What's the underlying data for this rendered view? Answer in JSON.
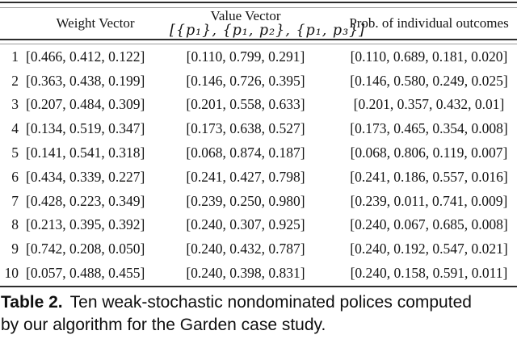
{
  "table": {
    "col_headers": {
      "weight": "Weight Vector",
      "value_line1": "Value Vector",
      "value_line2": "[{p₁}, {p₁, p₂}, {p₁, p₃}]",
      "prob": "Prob. of individual outcomes"
    },
    "rows": [
      {
        "index": "1",
        "weight": "[0.466, 0.412, 0.122]",
        "value": "[0.110, 0.799, 0.291]",
        "prob": "[0.110, 0.689, 0.181, 0.020]"
      },
      {
        "index": "2",
        "weight": "[0.363, 0.438, 0.199]",
        "value": "[0.146, 0.726, 0.395]",
        "prob": "[0.146, 0.580, 0.249, 0.025]"
      },
      {
        "index": "3",
        "weight": "[0.207, 0.484, 0.309]",
        "value": "[0.201, 0.558, 0.633]",
        "prob": "[0.201, 0.357, 0.432, 0.01]"
      },
      {
        "index": "4",
        "weight": "[0.134, 0.519, 0.347]",
        "value": "[0.173, 0.638, 0.527]",
        "prob": "[0.173, 0.465, 0.354, 0.008]"
      },
      {
        "index": "5",
        "weight": "[0.141, 0.541, 0.318]",
        "value": "[0.068, 0.874, 0.187]",
        "prob": "[0.068, 0.806, 0.119, 0.007]"
      },
      {
        "index": "6",
        "weight": "[0.434, 0.339, 0.227]",
        "value": "[0.241, 0.427, 0.798]",
        "prob": "[0.241, 0.186, 0.557, 0.016]"
      },
      {
        "index": "7",
        "weight": "[0.428, 0.223, 0.349]",
        "value": "[0.239, 0.250, 0.980]",
        "prob": "[0.239, 0.011, 0.741, 0.009]"
      },
      {
        "index": "8",
        "weight": "[0.213, 0.395, 0.392]",
        "value": "[0.240, 0.307, 0.925]",
        "prob": "[0.240, 0.067, 0.685, 0.008]"
      },
      {
        "index": "9",
        "weight": "[0.742, 0.208, 0.050]",
        "value": "[0.240, 0.432, 0.787]",
        "prob": "[0.240, 0.192, 0.547, 0.021]"
      },
      {
        "index": "10",
        "weight": "[0.057, 0.488, 0.455]",
        "value": "[0.240, 0.398, 0.831]",
        "prob": "[0.240, 0.158, 0.591, 0.011]"
      }
    ]
  },
  "caption": {
    "label": "Table 2.",
    "line1": "Ten weak-stochastic nondominated polices computed",
    "line2": "by our algorithm for the Garden case study."
  },
  "colors": {
    "text": "#141414",
    "rule_dark": "#2d2d2d",
    "rule_light": "#9b9b9b",
    "background": "#ffffff"
  }
}
